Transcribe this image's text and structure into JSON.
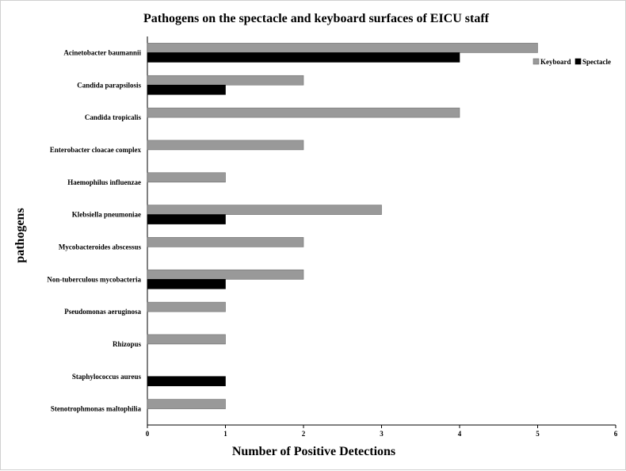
{
  "chart_data": {
    "type": "bar",
    "orientation": "horizontal",
    "title": "Pathogens on the spectacle and keyboard surfaces of EICU staff",
    "xlabel": "Number of Positive Detections",
    "ylabel": "pathogens",
    "xlim": [
      0,
      6
    ],
    "xticks": [
      "0",
      "1",
      "2",
      "3",
      "4",
      "5",
      "6"
    ],
    "grid": false,
    "legend_position": "top-right",
    "categories": [
      "Acinetobacter baumannii",
      "Candida parapsilosis",
      "Candida tropicalis",
      "Enterobacter cloacae complex",
      "Haemophilus influenzae",
      "Klebsiella pneumoniae",
      "Mycobacteroides abscessus",
      "Non-tuberculous mycobacteria",
      "Pseudomonas aeruginosa",
      "Rhizopus",
      "Staphylococcus aureus",
      "Stenotrophmonas maltophilia"
    ],
    "series": [
      {
        "name": "Keyboard",
        "color": "#999999",
        "values": [
          5,
          2,
          4,
          2,
          1,
          3,
          2,
          2,
          1,
          1,
          0,
          1
        ]
      },
      {
        "name": "Spectacle",
        "color": "#000000",
        "values": [
          4,
          1,
          0,
          0,
          0,
          1,
          0,
          1,
          0,
          0,
          1,
          0
        ]
      }
    ]
  }
}
